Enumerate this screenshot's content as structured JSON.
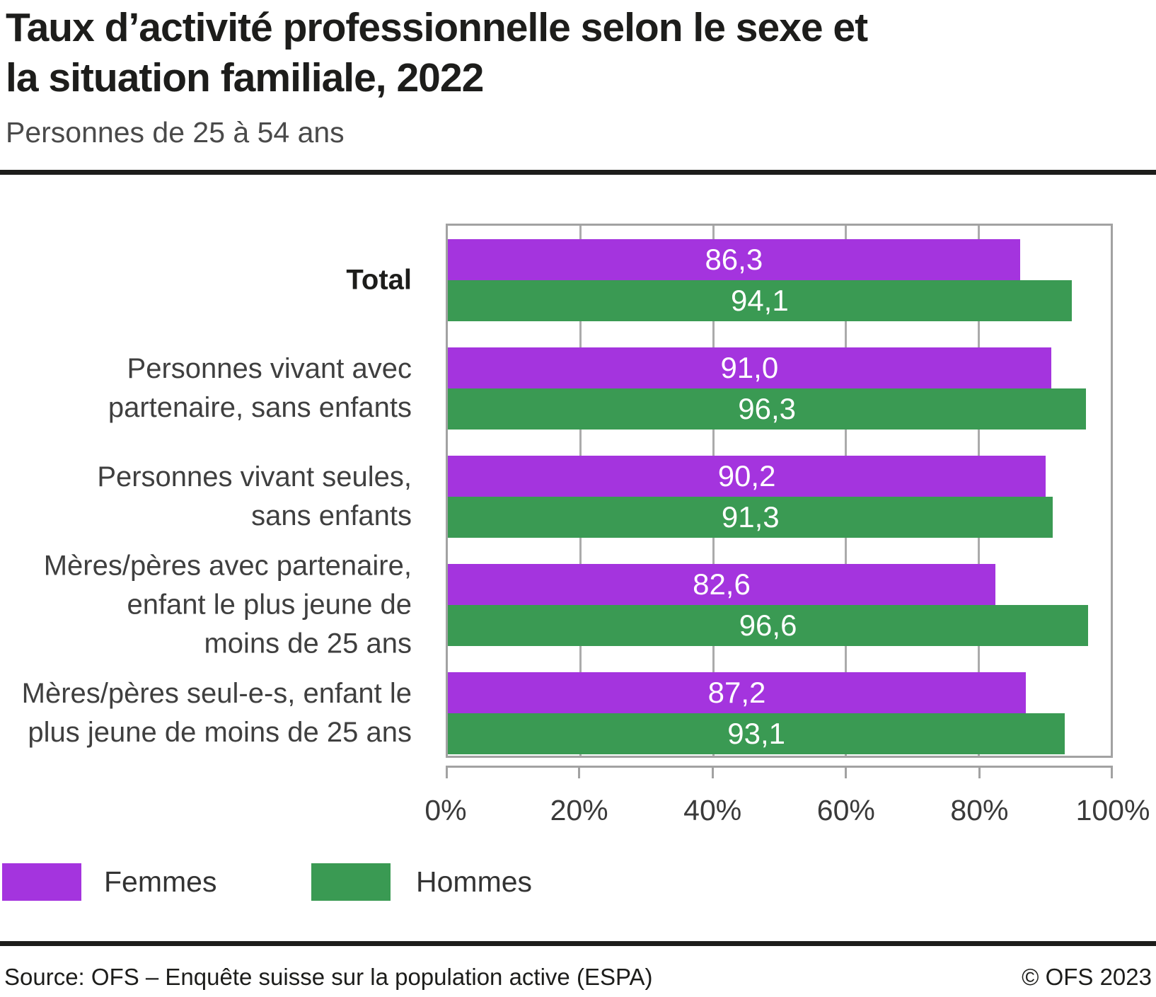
{
  "header": {
    "title_line1": "Taux d’activité professionnelle selon le sexe et",
    "title_line2": "la situation familiale, 2022",
    "subtitle": "Personnes de 25 à 54 ans"
  },
  "chart_data": {
    "type": "bar",
    "orientation": "horizontal",
    "title": "Taux d’activité professionnelle selon le sexe et la situation familiale, 2022",
    "subtitle": "Personnes de 25 à 54 ans",
    "unit": "%",
    "categories": [
      {
        "lines": [
          "Total"
        ],
        "bold": true
      },
      {
        "lines": [
          "Personnes vivant avec",
          "partenaire, sans enfants"
        ],
        "bold": false
      },
      {
        "lines": [
          "Personnes vivant seules,",
          "sans enfants"
        ],
        "bold": false
      },
      {
        "lines": [
          "Mères/pères avec partenaire,",
          "enfant le plus jeune de",
          "moins de 25 ans"
        ],
        "bold": false
      },
      {
        "lines": [
          "Mères/pères seul-e-s, enfant le",
          "plus jeune de moins de 25 ans"
        ],
        "bold": false
      }
    ],
    "series": [
      {
        "name": "Femmes",
        "color": "#a434de",
        "values": [
          86.3,
          91.0,
          90.2,
          82.6,
          87.2
        ],
        "value_labels": [
          "86,3",
          "91,0",
          "90,2",
          "82,6",
          "87,2"
        ]
      },
      {
        "name": "Hommes",
        "color": "#3a9a53",
        "values": [
          94.1,
          96.3,
          91.3,
          96.6,
          93.1
        ],
        "value_labels": [
          "94,1",
          "96,3",
          "91,3",
          "96,6",
          "93,1"
        ]
      }
    ],
    "x_axis": {
      "min": 0,
      "max": 100,
      "tick_labels": [
        "0%",
        "20%",
        "40%",
        "60%",
        "80%",
        "100%"
      ]
    },
    "legend": [
      "Femmes",
      "Hommes"
    ],
    "legend_position": "bottom-left",
    "grid": "vertical"
  },
  "legend_items": [
    {
      "label": "Femmes",
      "color": "#a434de"
    },
    {
      "label": "Hommes",
      "color": "#3a9a53"
    }
  ],
  "footer": {
    "source": "Source: OFS – Enquête suisse sur la population active (ESPA)",
    "copyright": "© OFS 2023"
  },
  "colors": {
    "femmes": "#a434de",
    "hommes": "#3a9a53",
    "grid": "#ababab",
    "frame": "#a2a2a2",
    "rule": "#1d1d1b"
  }
}
